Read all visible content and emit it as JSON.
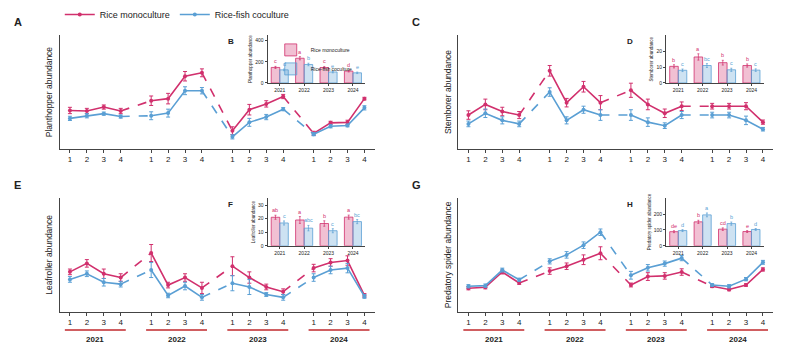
{
  "chart_data": [
    {
      "type": "line",
      "panel": "A",
      "ylabel": "Planthopper abundance",
      "legend": "top",
      "tick_labels": "x",
      "categories": [
        "1",
        "2",
        "3",
        "4",
        "1",
        "2",
        "3",
        "4",
        "1",
        "2",
        "3",
        "4",
        "1",
        "2",
        "3",
        "4"
      ],
      "ylim": [
        0,
        430
      ],
      "series": [
        {
          "name": "Rice monoculture",
          "color": "#d1306d",
          "values": [
            145,
            143,
            158,
            143,
            182,
            190,
            275,
            288,
            68,
            148,
            170,
            198,
            58,
            98,
            100,
            190
          ],
          "errors": [
            12,
            10,
            8,
            10,
            18,
            20,
            18,
            15,
            15,
            20,
            12,
            8,
            8,
            6,
            8,
            5
          ]
        },
        {
          "name": "Rice-fish coculture",
          "color": "#5a9fd4",
          "values": [
            115,
            125,
            133,
            122,
            125,
            135,
            220,
            220,
            45,
            100,
            120,
            150,
            55,
            85,
            88,
            155
          ],
          "errors": [
            8,
            8,
            6,
            6,
            15,
            15,
            15,
            12,
            8,
            15,
            10,
            6,
            6,
            6,
            5,
            8
          ]
        }
      ]
    },
    {
      "type": "bar",
      "panel": "B",
      "ylabel": "Planthopper abundance",
      "legend": "top-left",
      "categories": [
        "2021",
        "2022",
        "2023",
        "2024"
      ],
      "ylim": [
        0,
        450
      ],
      "yticks": [
        0,
        200,
        400
      ],
      "series": [
        {
          "name": "Rice monoculture",
          "color": "#d1306d",
          "values": [
            147,
            234,
            146,
            112
          ],
          "errors": [
            10,
            15,
            10,
            8
          ],
          "letters": [
            "c",
            "a",
            "c",
            "d"
          ]
        },
        {
          "name": "Rice-fish coculture",
          "color": "#5a9fd4",
          "values": [
            124,
            175,
            104,
            96
          ],
          "errors": [
            8,
            12,
            8,
            7
          ],
          "letters": [
            "d",
            "b",
            "e",
            "e"
          ]
        }
      ]
    },
    {
      "type": "line",
      "panel": "C",
      "ylabel": "Stemborer abundance",
      "tick_labels": "x",
      "categories": [
        "1",
        "2",
        "3",
        "4",
        "1",
        "2",
        "3",
        "4",
        "1",
        "2",
        "3",
        "4",
        "1",
        "2",
        "3",
        "4"
      ],
      "ylim": [
        0,
        32
      ],
      "series": [
        {
          "name": "Rice monoculture",
          "color": "#d1306d",
          "values": [
            9.5,
            12.5,
            10.5,
            9.5,
            22,
            13,
            17.5,
            13,
            16.5,
            12.5,
            10,
            12,
            12,
            12,
            12,
            7.5
          ],
          "errors": [
            1.2,
            1.5,
            1.2,
            1,
            1.5,
            1.2,
            1.5,
            2,
            2,
            1.5,
            1.2,
            1.2,
            0.8,
            0.8,
            1,
            0.6
          ]
        },
        {
          "name": "Rice-fish coculture",
          "color": "#5a9fd4",
          "values": [
            7,
            10,
            8,
            7,
            16,
            8,
            11,
            9.5,
            9.5,
            7.5,
            6.5,
            9.5,
            9.5,
            9.5,
            8,
            5.5
          ],
          "errors": [
            0.8,
            1.2,
            1,
            0.8,
            1.2,
            1,
            1,
            1.5,
            1.5,
            1.2,
            0.8,
            1,
            0.8,
            0.8,
            1.2,
            0.5
          ]
        }
      ]
    },
    {
      "type": "bar",
      "panel": "D",
      "ylabel": "Stemborer abundance",
      "categories": [
        "2021",
        "2022",
        "2023",
        "2024"
      ],
      "ylim": [
        0,
        30
      ],
      "yticks": [
        0,
        10,
        20
      ],
      "series": [
        {
          "name": "Rice monoculture",
          "color": "#d1306d",
          "values": [
            10.5,
            16.4,
            12.8,
            11
          ],
          "errors": [
            1,
            2,
            1.5,
            1
          ],
          "letters": [
            "b",
            "a",
            "b",
            "b"
          ]
        },
        {
          "name": "Rice-fish coculture",
          "color": "#5a9fd4",
          "values": [
            8,
            11,
            8.3,
            8.1
          ],
          "errors": [
            0.8,
            1.2,
            1,
            0.8
          ],
          "letters": [
            "c",
            "bc",
            "c",
            "c"
          ]
        }
      ]
    },
    {
      "type": "line",
      "panel": "E",
      "ylabel": "Leafroller abundance",
      "tick_labels": "x",
      "categories": [
        "1",
        "2",
        "3",
        "4",
        "1",
        "2",
        "3",
        "4",
        "1",
        "2",
        "3",
        "4",
        "1",
        "2",
        "3",
        "4"
      ],
      "years": [
        "2021",
        "2022",
        "2023",
        "2024"
      ],
      "ylim": [
        0,
        60
      ],
      "series": [
        {
          "name": "Rice monoculture",
          "color": "#d1306d",
          "values": [
            21,
            25.5,
            20,
            18,
            31,
            14,
            18,
            12.5,
            24,
            18,
            13,
            10.5,
            23,
            26,
            27,
            8.5
          ],
          "errors": [
            1.5,
            2,
            2.5,
            2,
            4.5,
            1.5,
            2,
            3,
            5,
            3,
            1.5,
            1.5,
            2,
            2,
            2.5,
            1
          ]
        },
        {
          "name": "Rice-fish coculture",
          "color": "#5a9fd4",
          "values": [
            17,
            20,
            15.5,
            14.5,
            22,
            8.5,
            13.5,
            7.5,
            15,
            13,
            9,
            7.5,
            18,
            22,
            23,
            8
          ],
          "errors": [
            1.5,
            1.5,
            2,
            1.5,
            4,
            1.2,
            2,
            1.5,
            4,
            4,
            1,
            1.5,
            2,
            2,
            2.5,
            1
          ]
        }
      ]
    },
    {
      "type": "bar",
      "panel": "F",
      "ylabel": "Leafroller abundance",
      "categories": [
        "2021",
        "2022",
        "2023",
        "2024"
      ],
      "ylim": [
        0,
        35
      ],
      "yticks": [
        0,
        10,
        20,
        30
      ],
      "series": [
        {
          "name": "Rice monoculture",
          "color": "#d1306d",
          "values": [
            21,
            19,
            16.4,
            21.1
          ],
          "errors": [
            1.5,
            2.5,
            2,
            1.5
          ],
          "letters": [
            "ab",
            "a",
            "b",
            "a"
          ]
        },
        {
          "name": "Rice-fish coculture",
          "color": "#5a9fd4",
          "values": [
            16.8,
            13,
            11.1,
            17.8
          ],
          "errors": [
            1.5,
            2,
            1.5,
            1.5
          ],
          "letters": [
            "c",
            "abc",
            "c",
            "bc"
          ]
        }
      ]
    },
    {
      "type": "line",
      "panel": "G",
      "ylabel": "Predatory spider abundance",
      "tick_labels": "x",
      "categories": [
        "1",
        "2",
        "3",
        "4",
        "1",
        "2",
        "3",
        "4",
        "1",
        "2",
        "3",
        "4",
        "1",
        "2",
        "3",
        "4"
      ],
      "years": [
        "2021",
        "2022",
        "2023",
        "2024"
      ],
      "ylim": [
        0,
        350
      ],
      "series": [
        {
          "name": "Rice monoculture",
          "color": "#d1306d",
          "values": [
            72,
            75,
            122,
            88,
            125,
            140,
            160,
            180,
            82,
            108,
            110,
            122,
            78,
            68,
            82,
            130
          ],
          "errors": [
            5,
            5,
            6,
            4,
            10,
            10,
            15,
            20,
            6,
            12,
            10,
            10,
            4,
            4,
            4,
            5
          ]
        },
        {
          "name": "Rice-fish coculture",
          "color": "#5a9fd4",
          "values": [
            78,
            80,
            128,
            98,
            155,
            175,
            205,
            245,
            112,
            135,
            148,
            165,
            82,
            78,
            100,
            152
          ],
          "errors": [
            5,
            5,
            6,
            5,
            8,
            10,
            10,
            10,
            12,
            10,
            8,
            8,
            4,
            5,
            5,
            6
          ]
        }
      ]
    },
    {
      "type": "bar",
      "panel": "H",
      "ylabel": "Predatory spider abundance",
      "categories": [
        "2021",
        "2022",
        "2023",
        "2024"
      ],
      "ylim": [
        0,
        300
      ],
      "yticks": [
        0,
        100,
        200
      ],
      "series": [
        {
          "name": "Rice monoculture",
          "color": "#d1306d",
          "values": [
            89,
            151,
            105,
            90
          ],
          "errors": [
            6,
            10,
            8,
            6
          ],
          "letters": [
            "de",
            "b",
            "cd",
            "e"
          ]
        },
        {
          "name": "Rice-fish coculture",
          "color": "#5a9fd4",
          "values": [
            96,
            195,
            140,
            103
          ],
          "errors": [
            6,
            12,
            10,
            6
          ],
          "letters": [
            "d",
            "a",
            "b",
            "d"
          ]
        }
      ]
    }
  ]
}
